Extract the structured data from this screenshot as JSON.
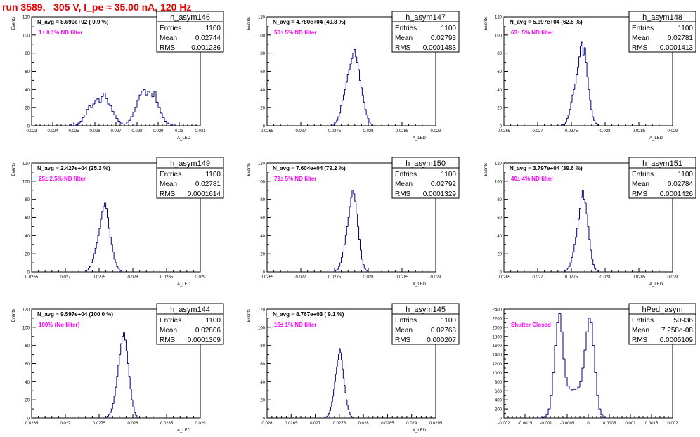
{
  "page_title": "run 3589,   305 V, I_pe ≈ 35.00 nA, 120 Hz",
  "colors": {
    "hist_line": "#00007f",
    "annotation": "#ff00ff",
    "title": "#e60000",
    "frame": "#000000"
  },
  "chart_data": [
    {
      "type": "bar",
      "name": "h_asym146",
      "navg": "N_avg = 8.690e+02 ( 0.9 %)",
      "filter": "1± 0.1% ND filter",
      "stats": [
        [
          "Entries",
          "1100"
        ],
        [
          "Mean",
          "0.02744"
        ],
        [
          "RMS",
          "0.001236"
        ]
      ],
      "ylabel": "Events",
      "xlabel": "A_LED",
      "ylim": [
        0,
        120
      ],
      "yticks": [
        "0",
        "20",
        "40",
        "60",
        "80",
        "100",
        "120"
      ],
      "xlim": [
        0.023,
        0.031
      ],
      "xticks": [
        "0.023",
        "0.024",
        "0.025",
        "0.026",
        "0.027",
        "0.028",
        "0.029",
        "0.03",
        "0.031"
      ],
      "bin_width": 0.0001,
      "x_start": 0.0248,
      "values": [
        1,
        0,
        2,
        1,
        3,
        5,
        9,
        12,
        18,
        22,
        20,
        24,
        28,
        30,
        26,
        32,
        36,
        30,
        24,
        22,
        16,
        12,
        8,
        5,
        3,
        2,
        2,
        4,
        6,
        10,
        15,
        20,
        28,
        34,
        38,
        40,
        34,
        38,
        36,
        32,
        38,
        26,
        20,
        14,
        9,
        5,
        3,
        2,
        1
      ]
    },
    {
      "type": "bar",
      "name": "h_asym147",
      "navg": "N_avg = 4.780e+04 (49.8 %)",
      "filter": "50± 5% ND filter",
      "stats": [
        [
          "Entries",
          "1100"
        ],
        [
          "Mean",
          "0.02793"
        ],
        [
          "RMS",
          "0.0001483"
        ]
      ],
      "ylabel": "Events",
      "xlabel": "A_LED",
      "ylim": [
        0,
        120
      ],
      "yticks": [
        "0",
        "20",
        "40",
        "60",
        "80",
        "100",
        "120"
      ],
      "xlim": [
        0.0265,
        0.029
      ],
      "xticks": [
        "0.0265",
        "0.027",
        "0.0275",
        "0.028",
        "0.0285",
        "0.029"
      ],
      "bin_width": 2e-05,
      "x_start": 0.02745,
      "values": [
        1,
        0,
        2,
        4,
        6,
        10,
        14,
        22,
        28,
        34,
        40,
        48,
        56,
        62,
        68,
        74,
        80,
        84,
        76,
        70,
        62,
        50,
        42,
        34,
        26,
        18,
        12,
        8,
        4,
        2,
        1
      ]
    },
    {
      "type": "bar",
      "name": "h_asym148",
      "navg": "N_avg = 5.997e+04 (62.5 %)",
      "filter": "63± 5% ND filter",
      "stats": [
        [
          "Entries",
          "1100"
        ],
        [
          "Mean",
          "0.02781"
        ],
        [
          "RMS",
          "0.0001413"
        ]
      ],
      "ylabel": "Events",
      "xlabel": "A_LED",
      "ylim": [
        0,
        120
      ],
      "yticks": [
        "0",
        "20",
        "40",
        "60",
        "80",
        "100",
        "120"
      ],
      "xlim": [
        0.0265,
        0.029
      ],
      "xticks": [
        "0.0265",
        "0.027",
        "0.0275",
        "0.028",
        "0.0285",
        "0.029"
      ],
      "bin_width": 2e-05,
      "x_start": 0.02735,
      "values": [
        1,
        1,
        2,
        4,
        8,
        12,
        18,
        26,
        34,
        40,
        46,
        56,
        64,
        76,
        88,
        92,
        78,
        86,
        70,
        54,
        40,
        28,
        18,
        10,
        6,
        3,
        2,
        1
      ]
    },
    {
      "type": "bar",
      "name": "h_asym149",
      "navg": "N_avg = 2.427e+04 (25.3 %)",
      "filter": "25± 2.5% ND filter",
      "stats": [
        [
          "Entries",
          "1100"
        ],
        [
          "Mean",
          "0.02781"
        ],
        [
          "RMS",
          "0.0001614"
        ]
      ],
      "ylabel": "Events",
      "xlabel": "A_LED",
      "ylim": [
        0,
        120
      ],
      "yticks": [
        "0",
        "20",
        "40",
        "60",
        "80",
        "100",
        "120"
      ],
      "xlim": [
        0.0265,
        0.029
      ],
      "xticks": [
        "0.0265",
        "0.027",
        "0.0275",
        "0.028",
        "0.0285",
        "0.029"
      ],
      "bin_width": 2e-05,
      "x_start": 0.0273,
      "values": [
        1,
        2,
        4,
        6,
        10,
        14,
        20,
        26,
        32,
        40,
        48,
        58,
        66,
        72,
        76,
        70,
        60,
        48,
        38,
        30,
        22,
        14,
        10,
        6,
        4,
        2,
        1
      ]
    },
    {
      "type": "bar",
      "name": "h_asym150",
      "navg": "N_avg = 7.604e+04 (79.2 %)",
      "filter": "79± 5% ND filter",
      "stats": [
        [
          "Entries",
          "1100"
        ],
        [
          "Mean",
          "0.02792"
        ],
        [
          "RMS",
          "0.0001329"
        ]
      ],
      "ylabel": "Events",
      "xlabel": "A_LED",
      "ylim": [
        0,
        120
      ],
      "yticks": [
        "0",
        "20",
        "40",
        "60",
        "80",
        "100",
        "120"
      ],
      "xlim": [
        0.0265,
        0.029
      ],
      "xticks": [
        "0.0265",
        "0.027",
        "0.0275",
        "0.028",
        "0.0285",
        "0.029"
      ],
      "bin_width": 2e-05,
      "x_start": 0.0275,
      "values": [
        1,
        2,
        3,
        6,
        10,
        16,
        22,
        30,
        40,
        50,
        60,
        72,
        82,
        90,
        86,
        78,
        64,
        50,
        36,
        24,
        14,
        8,
        4,
        2,
        1
      ]
    },
    {
      "type": "bar",
      "name": "h_asym151",
      "navg": "N_avg = 3.797e+04 (39.6 %)",
      "filter": "40± 4% ND filter",
      "stats": [
        [
          "Entries",
          "1100"
        ],
        [
          "Mean",
          "0.02784"
        ],
        [
          "RMS",
          "0.0001426"
        ]
      ],
      "ylabel": "Events",
      "xlabel": "A_LED",
      "ylim": [
        0,
        120
      ],
      "yticks": [
        "0",
        "20",
        "40",
        "60",
        "80",
        "100",
        "120"
      ],
      "xlim": [
        0.0265,
        0.029
      ],
      "xticks": [
        "0.0265",
        "0.027",
        "0.0275",
        "0.028",
        "0.0285",
        "0.029"
      ],
      "bin_width": 2e-05,
      "x_start": 0.0274,
      "values": [
        1,
        2,
        4,
        6,
        10,
        16,
        22,
        30,
        38,
        48,
        58,
        70,
        82,
        90,
        80,
        76,
        64,
        50,
        36,
        24,
        14,
        8,
        4,
        2,
        1
      ]
    },
    {
      "type": "bar",
      "name": "h_asym144",
      "navg": "N_avg = 9.597e+04 (100.0 %)",
      "filter": "100% (No filter)",
      "stats": [
        [
          "Entries",
          "1100"
        ],
        [
          "Mean",
          "0.02806"
        ],
        [
          "RMS",
          "0.0001309"
        ]
      ],
      "ylabel": "Events",
      "xlabel": "A_LED",
      "ylim": [
        0,
        120
      ],
      "yticks": [
        "0",
        "20",
        "40",
        "60",
        "80",
        "100",
        "120"
      ],
      "xlim": [
        0.0265,
        0.029
      ],
      "xticks": [
        "0.0265",
        "0.027",
        "0.0275",
        "0.028",
        "0.0285",
        "0.029"
      ],
      "bin_width": 2e-05,
      "x_start": 0.0276,
      "values": [
        1,
        2,
        4,
        6,
        10,
        16,
        24,
        34,
        46,
        58,
        70,
        82,
        90,
        94,
        86,
        74,
        60,
        46,
        32,
        20,
        12,
        6,
        3,
        1
      ]
    },
    {
      "type": "bar",
      "name": "h_asym145",
      "navg": "N_avg = 8.767e+03 ( 9.1 %)",
      "filter": "10± 1% ND filter",
      "stats": [
        [
          "Entries",
          "1100"
        ],
        [
          "Mean",
          "0.02768"
        ],
        [
          "RMS",
          "0.000207"
        ]
      ],
      "ylabel": "Events",
      "xlabel": "A_LED",
      "ylim": [
        0,
        120
      ],
      "yticks": [
        "0",
        "20",
        "40",
        "60",
        "80",
        "100",
        "120"
      ],
      "xlim": [
        0.026,
        0.0295
      ],
      "xticks": [
        "0.026",
        "0.0265",
        "0.027",
        "0.0275",
        "0.028",
        "0.0285",
        "0.029",
        "0.0295"
      ],
      "bin_width": 2e-05,
      "x_start": 0.0272,
      "values": [
        1,
        1,
        2,
        3,
        5,
        8,
        12,
        18,
        24,
        32,
        40,
        48,
        56,
        64,
        70,
        76,
        72,
        64,
        54,
        44,
        36,
        28,
        20,
        14,
        10,
        6,
        4,
        2,
        1
      ]
    },
    {
      "type": "bar",
      "name": "hPed_asym",
      "navg": "",
      "filter": "Shutter Closed",
      "stats": [
        [
          "Entries",
          "50936"
        ],
        [
          "Mean",
          "7.258e-08"
        ],
        [
          "RMS",
          "0.0005109"
        ]
      ],
      "ylabel": "",
      "xlabel": "",
      "ylim": [
        0,
        2400
      ],
      "yticks": [
        "0",
        "200",
        "400",
        "600",
        "800",
        "1000",
        "1200",
        "1400",
        "1600",
        "1800",
        "2000",
        "2200",
        "2400"
      ],
      "xlim": [
        -0.002,
        0.002
      ],
      "xticks": [
        "-0.002",
        "-0.0015",
        "-0.001",
        "-0.0005",
        "0",
        "0.0005",
        "0.001",
        "0.0015",
        "0.002"
      ],
      "bin_width": 5e-05,
      "x_start": -0.0011,
      "values": [
        10,
        30,
        80,
        200,
        500,
        1000,
        1600,
        2100,
        2300,
        1900,
        1300,
        900,
        700,
        640,
        620,
        630,
        640,
        680,
        800,
        1100,
        1500,
        1900,
        2200,
        2100,
        1600,
        1000,
        500,
        200,
        80,
        20
      ]
    }
  ]
}
